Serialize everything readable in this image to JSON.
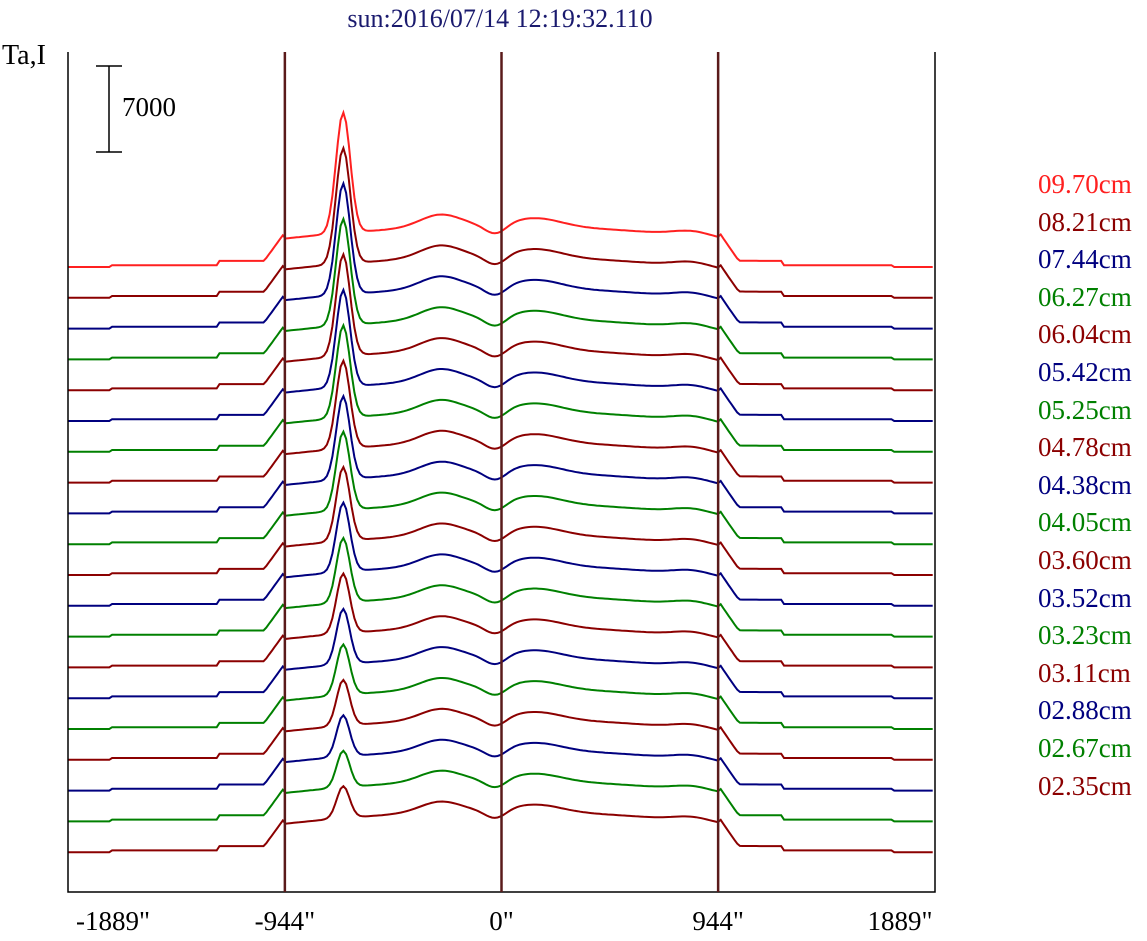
{
  "colors": {
    "title": "#1a1a6e",
    "axis": "#000000",
    "guide_line": "#5a1a1a",
    "red": "#ff2020",
    "maroon": "#8b0000",
    "navy": "#00007f",
    "green": "#008000"
  },
  "chart_data": {
    "type": "line",
    "title": "sun:2016/07/14 12:19:32.110",
    "ylabel": "Ta,I",
    "scale_bar_label": "7000",
    "scale_bar_value": 7000,
    "x_unit": "arcsec",
    "xlim": [
      -1889,
      1889
    ],
    "x_ticks": [
      -1889,
      -944,
      0,
      944,
      1889
    ],
    "x_tick_labels": [
      "-1889\"",
      "-944\"",
      "0\"",
      "944\"",
      "1889\""
    ],
    "vertical_lines": [
      -944,
      0,
      944
    ],
    "grid": false,
    "legend_position": "right",
    "series": [
      {
        "name": "09.70cm",
        "color": "red"
      },
      {
        "name": "08.21cm",
        "color": "maroon"
      },
      {
        "name": "07.44cm",
        "color": "navy"
      },
      {
        "name": "06.27cm",
        "color": "green"
      },
      {
        "name": "06.04cm",
        "color": "maroon"
      },
      {
        "name": "05.42cm",
        "color": "navy"
      },
      {
        "name": "05.25cm",
        "color": "green"
      },
      {
        "name": "04.78cm",
        "color": "maroon"
      },
      {
        "name": "04.38cm",
        "color": "navy"
      },
      {
        "name": "04.05cm",
        "color": "green"
      },
      {
        "name": "03.60cm",
        "color": "maroon"
      },
      {
        "name": "03.52cm",
        "color": "navy"
      },
      {
        "name": "03.23cm",
        "color": "green"
      },
      {
        "name": "03.11cm",
        "color": "maroon"
      },
      {
        "name": "02.88cm",
        "color": "navy"
      },
      {
        "name": "02.67cm",
        "color": "green"
      },
      {
        "name": "02.35cm",
        "color": "maroon"
      }
    ],
    "unlabeled_traces": [
      {
        "color": "navy"
      },
      {
        "color": "green"
      },
      {
        "color": "maroon"
      }
    ]
  }
}
